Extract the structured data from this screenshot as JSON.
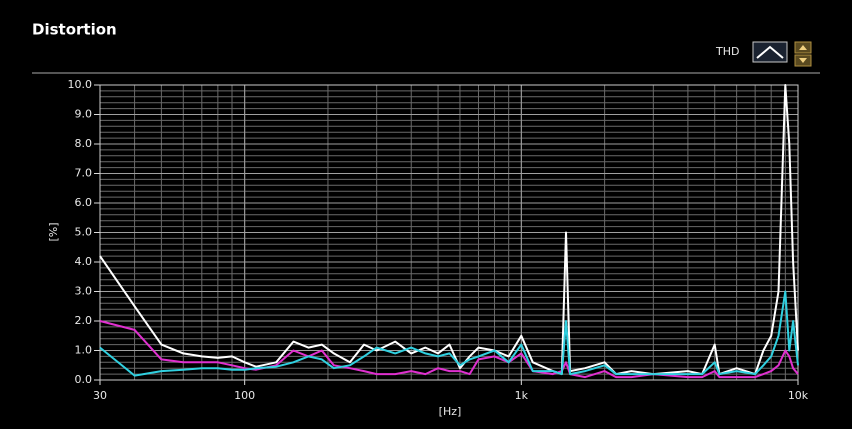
{
  "chart_data": {
    "type": "line",
    "title": "Distortion",
    "control_label": "THD",
    "xlabel": "[Hz]",
    "ylabel": "[%]",
    "xscale": "log",
    "xlim": [
      30,
      10000
    ],
    "ylim": [
      0,
      10
    ],
    "xticks": [
      30,
      100,
      {
        "value": 1000,
        "label": "1k"
      },
      {
        "value": 10000,
        "label": "10k"
      }
    ],
    "yticks": [
      {
        "value": 0,
        "label": "0.0"
      },
      {
        "value": 1,
        "label": "1.0"
      },
      {
        "value": 2,
        "label": "2.0"
      },
      {
        "value": 3,
        "label": "3.0"
      },
      {
        "value": 4,
        "label": "4.0"
      },
      {
        "value": 5,
        "label": "5.0"
      },
      {
        "value": 6,
        "label": "6.0"
      },
      {
        "value": 7,
        "label": "7.0"
      },
      {
        "value": 8,
        "label": "8.0"
      },
      {
        "value": 9,
        "label": "9.0"
      },
      {
        "value": 10,
        "label": "10.0"
      }
    ],
    "grid": true,
    "x": [
      30,
      40,
      50,
      60,
      70,
      80,
      90,
      100,
      110,
      130,
      150,
      170,
      190,
      210,
      240,
      270,
      300,
      350,
      400,
      450,
      500,
      550,
      600,
      650,
      700,
      800,
      900,
      1000,
      1100,
      1300,
      1400,
      1450,
      1500,
      1700,
      2000,
      2200,
      2500,
      3000,
      4000,
      4500,
      5000,
      5200,
      6000,
      7000,
      7500,
      8000,
      8500,
      9000,
      9300,
      9600,
      10000
    ],
    "series": [
      {
        "color": "#ffffff",
        "values": [
          4.2,
          2.5,
          1.2,
          0.9,
          0.8,
          0.75,
          0.8,
          0.6,
          0.45,
          0.6,
          1.3,
          1.1,
          1.2,
          0.9,
          0.6,
          1.2,
          1.0,
          1.3,
          0.9,
          1.1,
          0.9,
          1.2,
          0.4,
          0.8,
          1.1,
          1.0,
          0.8,
          1.5,
          0.6,
          0.3,
          0.2,
          5.0,
          0.3,
          0.4,
          0.6,
          0.2,
          0.3,
          0.2,
          0.3,
          0.2,
          1.2,
          0.2,
          0.4,
          0.2,
          1.0,
          1.5,
          3.0,
          10.0,
          8.0,
          4.0,
          1.0
        ]
      },
      {
        "color": "#e030d0",
        "values": [
          2.0,
          1.7,
          0.7,
          0.6,
          0.6,
          0.6,
          0.5,
          0.4,
          0.35,
          0.5,
          1.0,
          0.8,
          1.0,
          0.5,
          0.4,
          0.3,
          0.2,
          0.2,
          0.3,
          0.2,
          0.4,
          0.3,
          0.3,
          0.2,
          0.7,
          0.8,
          0.6,
          0.9,
          0.3,
          0.2,
          0.3,
          0.6,
          0.2,
          0.1,
          0.3,
          0.1,
          0.1,
          0.2,
          0.1,
          0.1,
          0.3,
          0.1,
          0.1,
          0.1,
          0.2,
          0.3,
          0.5,
          1.0,
          0.8,
          0.4,
          0.2
        ]
      },
      {
        "color": "#30d0e0",
        "values": [
          1.1,
          0.15,
          0.3,
          0.35,
          0.4,
          0.4,
          0.35,
          0.35,
          0.4,
          0.45,
          0.6,
          0.8,
          0.7,
          0.4,
          0.5,
          0.8,
          1.1,
          0.9,
          1.1,
          0.9,
          0.8,
          0.9,
          0.5,
          0.7,
          0.8,
          1.0,
          0.6,
          1.2,
          0.3,
          0.3,
          0.2,
          2.0,
          0.2,
          0.3,
          0.5,
          0.2,
          0.2,
          0.2,
          0.2,
          0.2,
          0.6,
          0.2,
          0.3,
          0.2,
          0.5,
          0.8,
          1.5,
          3.0,
          1.0,
          2.0,
          0.5
        ]
      }
    ]
  }
}
